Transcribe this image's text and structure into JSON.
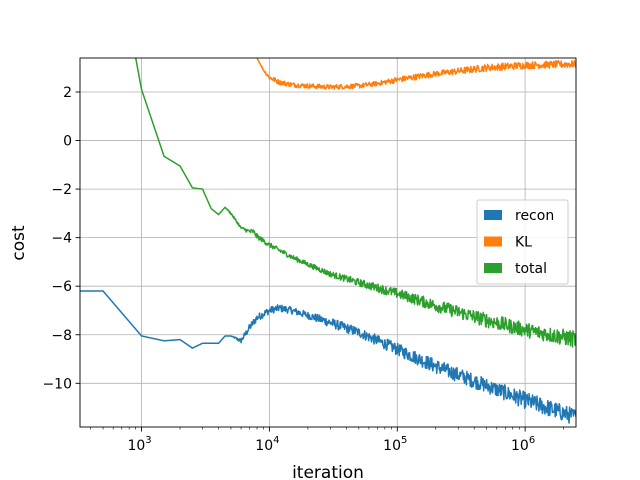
{
  "chart_data": {
    "type": "line",
    "xscale": "log",
    "xlabel": "iteration",
    "ylabel": "cost",
    "xlim": [
      330,
      2500000
    ],
    "ylim": [
      -11.8,
      3.4
    ],
    "grid": true,
    "legend_position": "center-right",
    "x_ticks": [
      1000,
      10000,
      100000,
      1000000
    ],
    "x_tick_labels": [
      {
        "base": "10",
        "exp": "3"
      },
      {
        "base": "10",
        "exp": "4"
      },
      {
        "base": "10",
        "exp": "5"
      },
      {
        "base": "10",
        "exp": "6"
      }
    ],
    "y_ticks": [
      2,
      0,
      -2,
      -4,
      -6,
      -8,
      -10
    ],
    "y_tick_labels": [
      "2",
      "0",
      "−2",
      "−4",
      "−6",
      "−8",
      "−10"
    ],
    "series": [
      {
        "name": "recon",
        "color": "#1f77b4",
        "x": [
          330,
          500,
          1000,
          1500,
          2000,
          2500,
          3000,
          3500,
          4000,
          4500,
          5000,
          6000,
          7000,
          8000,
          10000,
          12000,
          15000,
          20000,
          30000,
          50000,
          100000,
          200000,
          500000,
          1000000,
          2500000
        ],
        "values": [
          -6.2,
          -6.2,
          -8.05,
          -8.25,
          -8.2,
          -8.55,
          -8.35,
          -8.35,
          -8.35,
          -8.05,
          -8.05,
          -8.25,
          -7.7,
          -7.3,
          -7.0,
          -6.9,
          -7.0,
          -7.2,
          -7.5,
          -7.9,
          -8.6,
          -9.3,
          -10.1,
          -10.7,
          -11.4
        ],
        "noise": [
          0,
          0,
          0,
          0,
          0,
          0,
          0,
          0,
          0,
          0,
          0,
          0.1,
          0.15,
          0.15,
          0.15,
          0.15,
          0.15,
          0.15,
          0.2,
          0.2,
          0.25,
          0.3,
          0.3,
          0.35,
          0.35
        ]
      },
      {
        "name": "KL",
        "color": "#ff7f0e",
        "x": [
          8000,
          9000,
          10000,
          12000,
          15000,
          20000,
          30000,
          50000,
          70000,
          100000,
          200000,
          500000,
          1000000,
          2500000
        ],
        "values": [
          3.4,
          2.9,
          2.6,
          2.4,
          2.3,
          2.25,
          2.2,
          2.25,
          2.35,
          2.5,
          2.75,
          3.0,
          3.1,
          3.15
        ],
        "noise": [
          0,
          0.05,
          0.1,
          0.1,
          0.1,
          0.1,
          0.1,
          0.1,
          0.1,
          0.12,
          0.12,
          0.15,
          0.15,
          0.15
        ]
      },
      {
        "name": "total",
        "color": "#2ca02c",
        "x": [
          900,
          1000,
          1500,
          2000,
          2500,
          3000,
          3500,
          4000,
          4500,
          5000,
          6000,
          7000,
          7500,
          8000,
          10000,
          15000,
          20000,
          30000,
          50000,
          100000,
          200000,
          500000,
          1000000,
          2500000
        ],
        "values": [
          3.4,
          2.1,
          -0.65,
          -1.05,
          -1.95,
          -2.0,
          -2.8,
          -3.05,
          -2.75,
          -3.0,
          -3.6,
          -3.75,
          -3.75,
          -3.95,
          -4.3,
          -4.8,
          -5.1,
          -5.5,
          -5.85,
          -6.3,
          -6.8,
          -7.4,
          -7.8,
          -8.2
        ],
        "noise": [
          0,
          0,
          0,
          0,
          0,
          0,
          0,
          0,
          0,
          0.05,
          0.05,
          0.1,
          0.1,
          0.1,
          0.1,
          0.1,
          0.1,
          0.12,
          0.15,
          0.2,
          0.25,
          0.3,
          0.3,
          0.35
        ]
      }
    ]
  }
}
